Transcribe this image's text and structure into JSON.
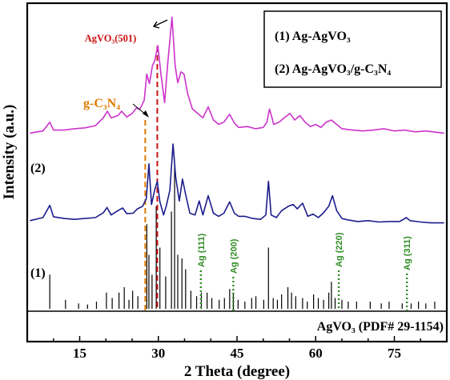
{
  "chart_data": {
    "type": "line",
    "xlabel": "2 Theta (degree)",
    "ylabel": "Intensity (a.u.)",
    "xlim": [
      5,
      85
    ],
    "x_ticks": [
      15,
      30,
      45,
      60,
      75
    ],
    "x_tick_labels": [
      "15",
      "30",
      "45",
      "60",
      "75"
    ],
    "legend": {
      "position": "top-right",
      "items": [
        "(1) Ag-AgVO₃",
        "(2) Ag-AgVO₃/g-C₃N₄"
      ]
    },
    "series": [
      {
        "name": "(1) Ag-AgVO₃",
        "label": "(1)",
        "color": "#1c1c8c",
        "x": [
          5.5,
          8,
          9.3,
          10,
          12,
          14,
          16,
          18,
          19.5,
          20.2,
          21,
          22.3,
          23.2,
          24,
          25.2,
          26,
          27,
          27.7,
          28.2,
          28.7,
          29.3,
          29.8,
          30.3,
          31,
          31.5,
          32.2,
          32.8,
          33.3,
          34,
          34.6,
          35.2,
          36,
          37,
          37.8,
          38.5,
          39.5,
          40.5,
          41.5,
          42.5,
          43.6,
          44.5,
          45.3,
          46.5,
          48,
          49.5,
          50.5,
          51,
          51.5,
          52.5,
          53.5,
          54.8,
          55.7,
          56.5,
          57.5,
          58.5,
          59.5,
          60.5,
          61.5,
          62.5,
          63.2,
          64,
          65,
          66,
          68,
          70,
          72,
          74,
          76,
          77.3,
          78,
          80,
          82,
          84.5
        ],
        "y": [
          205,
          212,
          240,
          214,
          210,
          208,
          210,
          212,
          223,
          235,
          218,
          228,
          234,
          221,
          222,
          232,
          238,
          255,
          335,
          242,
          275,
          295,
          248,
          218,
          238,
          275,
          380,
          305,
          250,
          300,
          265,
          222,
          218,
          250,
          218,
          262,
          222,
          215,
          222,
          248,
          222,
          215,
          215,
          210,
          208,
          218,
          295,
          218,
          212,
          228,
          238,
          242,
          232,
          245,
          215,
          220,
          212,
          223,
          238,
          262,
          228,
          210,
          207,
          203,
          205,
          202,
          203,
          203,
          212,
          205,
          202,
          200,
          200
        ]
      },
      {
        "name": "(2) Ag-AgVO₃/g-C₃N₄",
        "label": "(2)",
        "color": "#cc33cc",
        "x": [
          5.5,
          8,
          9.3,
          10,
          12,
          14,
          16,
          18,
          19.5,
          20.3,
          21,
          22.3,
          23,
          24,
          25,
          25.8,
          26.5,
          27.3,
          27.8,
          28.3,
          28.9,
          29.3,
          29.9,
          30.5,
          31.2,
          31.8,
          32.6,
          33.2,
          33.7,
          34.3,
          34.9,
          35.6,
          36.5,
          37.5,
          38.5,
          39.5,
          40.5,
          41.5,
          42.5,
          43.6,
          44.5,
          45.3,
          47,
          48.5,
          50,
          50.7,
          51.2,
          52,
          53,
          54,
          55.1,
          56,
          57,
          58,
          59,
          60,
          61,
          62,
          63,
          64,
          65,
          67,
          69,
          71,
          73,
          75,
          77,
          79,
          81,
          83,
          84.5
        ],
        "y": [
          405,
          410,
          430,
          412,
          412,
          415,
          417,
          422,
          440,
          455,
          440,
          445,
          455,
          442,
          450,
          462,
          460,
          480,
          540,
          518,
          560,
          570,
          605,
          540,
          475,
          565,
          670,
          560,
          520,
          545,
          540,
          495,
          460,
          450,
          440,
          465,
          435,
          425,
          430,
          448,
          428,
          418,
          420,
          415,
          418,
          430,
          460,
          425,
          430,
          440,
          450,
          435,
          445,
          430,
          420,
          425,
          418,
          430,
          435,
          425,
          415,
          412,
          410,
          412,
          415,
          410,
          412,
          408,
          410,
          407,
          405
        ]
      }
    ],
    "reference": {
      "label": "AgVO₃ (PDF# 29-1154)",
      "lines": [
        {
          "x": 9.3,
          "h": 0.95
        },
        {
          "x": 12.3,
          "h": 0.25
        },
        {
          "x": 14.8,
          "h": 0.15
        },
        {
          "x": 16.5,
          "h": 0.12
        },
        {
          "x": 18.2,
          "h": 0.2
        },
        {
          "x": 20.1,
          "h": 0.45
        },
        {
          "x": 21.2,
          "h": 0.3
        },
        {
          "x": 22.5,
          "h": 0.45
        },
        {
          "x": 23.5,
          "h": 0.6
        },
        {
          "x": 24.4,
          "h": 0.25
        },
        {
          "x": 25.1,
          "h": 0.5
        },
        {
          "x": 26.1,
          "h": 0.35
        },
        {
          "x": 27.8,
          "h": 2.35
        },
        {
          "x": 28.2,
          "h": 1.5
        },
        {
          "x": 28.8,
          "h": 0.95
        },
        {
          "x": 29.6,
          "h": 2.85
        },
        {
          "x": 30.3,
          "h": 1.7
        },
        {
          "x": 31.4,
          "h": 0.9
        },
        {
          "x": 32.5,
          "h": 2.7
        },
        {
          "x": 33.1,
          "h": 4.0
        },
        {
          "x": 33.7,
          "h": 1.5
        },
        {
          "x": 34.5,
          "h": 1.4
        },
        {
          "x": 35.2,
          "h": 1.1
        },
        {
          "x": 36.2,
          "h": 0.5
        },
        {
          "x": 37.3,
          "h": 0.35
        },
        {
          "x": 38.2,
          "h": 0.45
        },
        {
          "x": 39.3,
          "h": 0.45
        },
        {
          "x": 40.2,
          "h": 0.3
        },
        {
          "x": 41.6,
          "h": 0.25
        },
        {
          "x": 42.6,
          "h": 0.3
        },
        {
          "x": 43.6,
          "h": 0.55
        },
        {
          "x": 44.3,
          "h": 0.45
        },
        {
          "x": 45.2,
          "h": 0.25
        },
        {
          "x": 46.5,
          "h": 0.2
        },
        {
          "x": 47.8,
          "h": 0.3
        },
        {
          "x": 48.6,
          "h": 0.35
        },
        {
          "x": 50.1,
          "h": 0.25
        },
        {
          "x": 51.0,
          "h": 1.7
        },
        {
          "x": 51.9,
          "h": 0.3
        },
        {
          "x": 52.7,
          "h": 0.25
        },
        {
          "x": 53.5,
          "h": 0.4
        },
        {
          "x": 54.7,
          "h": 0.6
        },
        {
          "x": 55.4,
          "h": 0.45
        },
        {
          "x": 56.2,
          "h": 0.35
        },
        {
          "x": 57.5,
          "h": 0.3
        },
        {
          "x": 58.4,
          "h": 0.2
        },
        {
          "x": 59.6,
          "h": 0.4
        },
        {
          "x": 60.5,
          "h": 0.3
        },
        {
          "x": 61.5,
          "h": 0.25
        },
        {
          "x": 62.5,
          "h": 0.45
        },
        {
          "x": 63.0,
          "h": 0.75
        },
        {
          "x": 63.7,
          "h": 0.3
        },
        {
          "x": 65.0,
          "h": 0.25
        },
        {
          "x": 66.2,
          "h": 0.2
        },
        {
          "x": 67.8,
          "h": 0.2
        },
        {
          "x": 70.4,
          "h": 0.2
        },
        {
          "x": 72.5,
          "h": 0.15
        },
        {
          "x": 74.0,
          "h": 0.2
        },
        {
          "x": 76.5,
          "h": 0.15
        },
        {
          "x": 78.2,
          "h": 0.15
        },
        {
          "x": 79.6,
          "h": 0.2
        },
        {
          "x": 81.0,
          "h": 0.15
        },
        {
          "x": 82.7,
          "h": 0.2
        }
      ]
    },
    "annotations": {
      "agvo3_501": {
        "label": "AgVO₃(501)",
        "x": 29.8,
        "color": "#cc1111"
      },
      "gc3n4": {
        "label": "g-C₃N₄",
        "x": 27.5,
        "color": "#e07b00"
      },
      "ag_peaks": {
        "color": "#2e8b22",
        "items": [
          {
            "label": "Ag (111)",
            "x": 38.1
          },
          {
            "label": "Ag (200)",
            "x": 44.3
          },
          {
            "label": "Ag (220)",
            "x": 64.4
          },
          {
            "label": "Ag (311)",
            "x": 77.4
          }
        ]
      }
    }
  }
}
